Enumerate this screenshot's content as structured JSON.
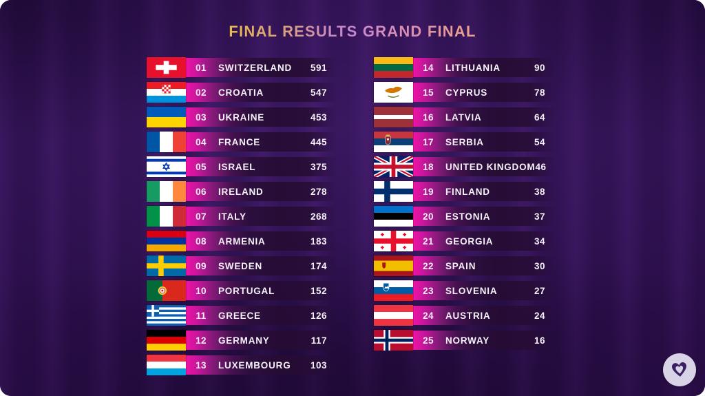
{
  "title": {
    "segment1": "FINAL RESULTS",
    "segment2": " GRAND FINAL",
    "full": "FINAL RESULTS GRAND FINAL"
  },
  "theme": {
    "background_purple": "#2d1048",
    "band_light": "#361458",
    "band_dark": "#2a0e49",
    "row_accent_magenta": "#f013a6",
    "row_bar_dark": "#260c34",
    "text_color": "#f6f2f9",
    "title_gold": "#e7b94e",
    "title_pink": "#c387cf",
    "title_salmon": "#f0a28c",
    "badge_circle": "#d8d3e7",
    "badge_heart": "#3a2060"
  },
  "heart_badge": {
    "icon": "eurovision-heart-icon"
  },
  "chart_data": {
    "type": "table",
    "title": "FINAL RESULTS GRAND FINAL",
    "columns": [
      "rank",
      "country",
      "points"
    ],
    "layout": {
      "left_column_rows": "ranks 1-13",
      "right_column_rows": "ranks 14-25"
    },
    "rows": [
      {
        "rank": "01",
        "country": "SWITZERLAND",
        "points": 591,
        "flag": "ch"
      },
      {
        "rank": "02",
        "country": "CROATIA",
        "points": 547,
        "flag": "hr"
      },
      {
        "rank": "03",
        "country": "UKRAINE",
        "points": 453,
        "flag": "ua"
      },
      {
        "rank": "04",
        "country": "FRANCE",
        "points": 445,
        "flag": "fr"
      },
      {
        "rank": "05",
        "country": "ISRAEL",
        "points": 375,
        "flag": "il"
      },
      {
        "rank": "06",
        "country": "IRELAND",
        "points": 278,
        "flag": "ie"
      },
      {
        "rank": "07",
        "country": "ITALY",
        "points": 268,
        "flag": "it"
      },
      {
        "rank": "08",
        "country": "ARMENIA",
        "points": 183,
        "flag": "am"
      },
      {
        "rank": "09",
        "country": "SWEDEN",
        "points": 174,
        "flag": "se"
      },
      {
        "rank": "10",
        "country": "PORTUGAL",
        "points": 152,
        "flag": "pt"
      },
      {
        "rank": "11",
        "country": "GREECE",
        "points": 126,
        "flag": "gr"
      },
      {
        "rank": "12",
        "country": "GERMANY",
        "points": 117,
        "flag": "de"
      },
      {
        "rank": "13",
        "country": "LUXEMBOURG",
        "points": 103,
        "flag": "lu"
      },
      {
        "rank": "14",
        "country": "LITHUANIA",
        "points": 90,
        "flag": "lt"
      },
      {
        "rank": "15",
        "country": "CYPRUS",
        "points": 78,
        "flag": "cy"
      },
      {
        "rank": "16",
        "country": "LATVIA",
        "points": 64,
        "flag": "lv"
      },
      {
        "rank": "17",
        "country": "SERBIA",
        "points": 54,
        "flag": "rs"
      },
      {
        "rank": "18",
        "country": "UNITED KINGDOM",
        "points": 46,
        "flag": "gb"
      },
      {
        "rank": "19",
        "country": "FINLAND",
        "points": 38,
        "flag": "fi"
      },
      {
        "rank": "20",
        "country": "ESTONIA",
        "points": 37,
        "flag": "ee"
      },
      {
        "rank": "21",
        "country": "GEORGIA",
        "points": 34,
        "flag": "ge"
      },
      {
        "rank": "22",
        "country": "SPAIN",
        "points": 30,
        "flag": "es"
      },
      {
        "rank": "23",
        "country": "SLOVENIA",
        "points": 27,
        "flag": "si"
      },
      {
        "rank": "24",
        "country": "AUSTRIA",
        "points": 24,
        "flag": "at"
      },
      {
        "rank": "25",
        "country": "NORWAY",
        "points": 16,
        "flag": "no"
      }
    ]
  }
}
